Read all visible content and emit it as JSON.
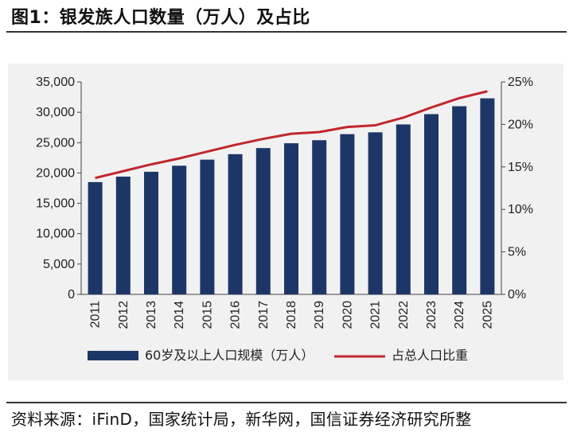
{
  "figure_title": "图1：银发族人口数量（万人）及占比",
  "source_text": "资料来源：iFinD，国家统计局，新华网，国信证券经济研究所整",
  "colors": {
    "bar": "#1c3767",
    "line": "#c0272d",
    "background": "#f1f1f1"
  },
  "chart_data": {
    "type": "bar",
    "categories": [
      "2011",
      "2012",
      "2013",
      "2014",
      "2015",
      "2016",
      "2017",
      "2018",
      "2019",
      "2020",
      "2021",
      "2022",
      "2023",
      "2024",
      "2025"
    ],
    "series": [
      {
        "name": "60岁及以上人口规模（万人）",
        "type": "bar",
        "axis": "left",
        "values": [
          18500,
          19400,
          20200,
          21200,
          22200,
          23100,
          24100,
          24900,
          25400,
          26400,
          26700,
          28000,
          29700,
          31000,
          32300
        ]
      },
      {
        "name": "占总人口比重",
        "type": "line",
        "axis": "right",
        "values": [
          13.7,
          14.5,
          15.3,
          16.0,
          16.8,
          17.6,
          18.3,
          18.9,
          19.1,
          19.7,
          19.9,
          20.8,
          22.0,
          23.1,
          23.9
        ]
      }
    ],
    "y_left": {
      "min": 0,
      "max": 35000,
      "step": 5000,
      "tick_labels": [
        "0",
        "5,000",
        "10,000",
        "15,000",
        "20,000",
        "25,000",
        "30,000",
        "35,000"
      ]
    },
    "y_right": {
      "min": 0,
      "max": 25,
      "step": 5,
      "tick_labels": [
        "0%",
        "5%",
        "10%",
        "15%",
        "20%",
        "25%"
      ]
    },
    "legend_position": "bottom",
    "grid": false
  }
}
